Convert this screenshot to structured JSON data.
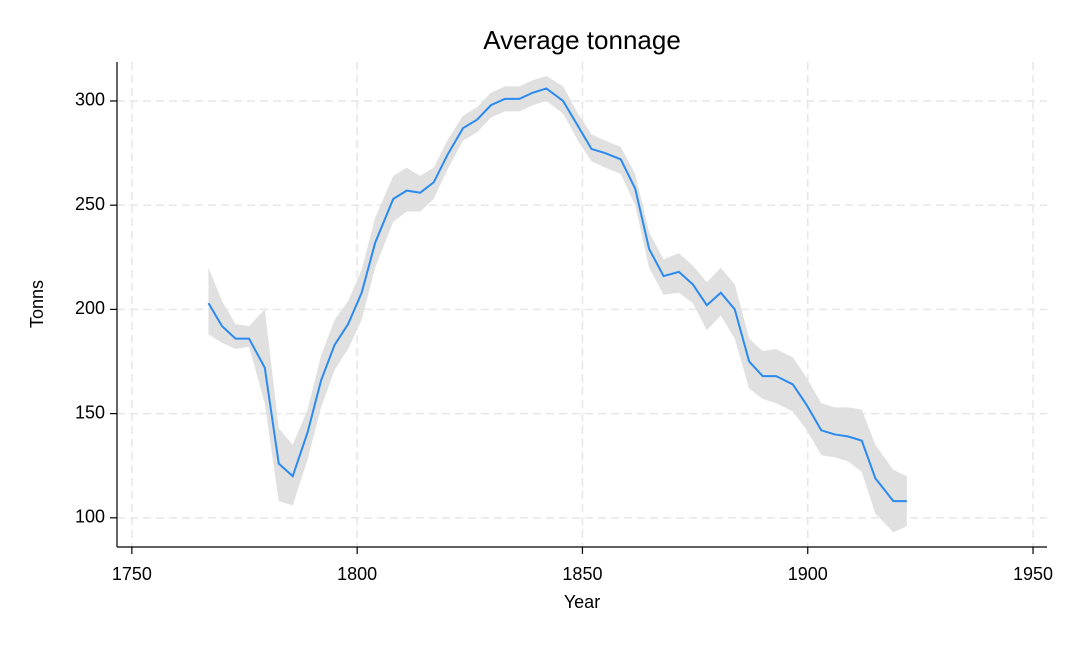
{
  "chart_data": {
    "type": "line",
    "title": "Average tonnage",
    "x_label": "Year",
    "y_label": "Tonns",
    "x": [
      1767,
      1770,
      1773,
      1776,
      1779.5,
      1782.6,
      1785.7,
      1789,
      1792,
      1795,
      1798,
      1801,
      1804,
      1808,
      1811,
      1814,
      1817,
      1820,
      1823.5,
      1826.6,
      1829.7,
      1832.8,
      1836,
      1839,
      1842,
      1845.7,
      1849,
      1852,
      1855,
      1858.5,
      1861.7,
      1864.8,
      1868,
      1871.4,
      1874.5,
      1877.6,
      1880.7,
      1883.8,
      1887,
      1890,
      1893,
      1896.7,
      1899.8,
      1903,
      1906,
      1909,
      1912,
      1915,
      1919,
      1922
    ],
    "values": [
      203,
      192,
      186,
      186,
      172,
      126,
      120,
      141,
      166,
      183,
      193,
      208,
      232,
      253,
      257,
      256,
      261,
      274,
      287,
      291,
      298,
      301,
      301,
      304,
      306,
      300,
      288,
      277,
      275,
      272,
      258,
      229,
      216,
      218,
      212,
      202,
      208,
      200,
      175,
      168,
      168,
      164,
      154,
      142,
      140,
      139,
      137,
      119,
      108,
      108
    ],
    "ci_lower": [
      188,
      184,
      181,
      182,
      155,
      108,
      106,
      128,
      153,
      171,
      181,
      195,
      220,
      242,
      247,
      247,
      253,
      267,
      281,
      285,
      292,
      295,
      295,
      298,
      300,
      294,
      281,
      271,
      268,
      265,
      250,
      220,
      207,
      208,
      203,
      190,
      197,
      186,
      162,
      157,
      155,
      151,
      142,
      130,
      129,
      127,
      122,
      102,
      93,
      96
    ],
    "ci_upper": [
      220,
      204,
      193,
      192,
      200,
      143,
      135,
      152,
      178,
      195,
      204,
      219,
      244,
      264,
      268,
      264,
      268,
      281,
      293,
      297,
      304,
      307,
      307,
      310,
      312,
      307,
      294,
      284,
      281,
      278,
      265,
      237,
      224,
      227,
      221,
      213,
      220,
      212,
      186,
      180,
      181,
      177,
      167,
      155,
      153,
      153,
      152,
      135,
      123,
      120
    ],
    "color": "#2a8af0",
    "band_color": "#e0e0e0",
    "xlim": [
      1746.7,
      1953.1
    ],
    "ylim": [
      86,
      318.7
    ],
    "xticks": [
      1750,
      1800,
      1850,
      1900,
      1950
    ],
    "yticks": [
      100,
      150,
      200,
      250,
      300
    ],
    "grid": true
  }
}
